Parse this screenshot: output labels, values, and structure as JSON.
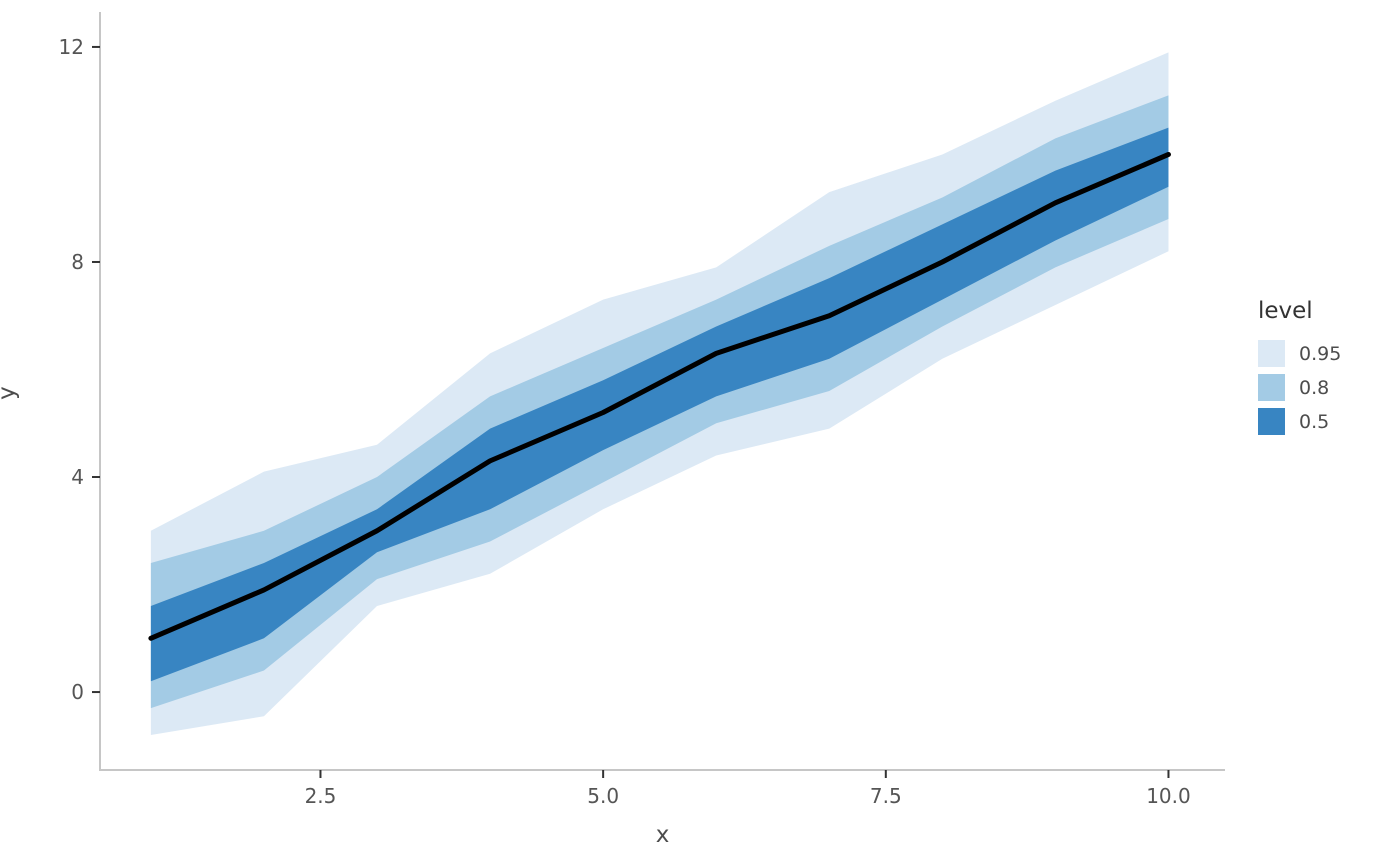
{
  "chart_data": {
    "type": "area",
    "title": "",
    "xlabel": "x",
    "ylabel": "y",
    "x": [
      1,
      2,
      3,
      4,
      5,
      6,
      7,
      8,
      9,
      10
    ],
    "median": [
      1.0,
      1.9,
      3.0,
      4.3,
      5.2,
      6.3,
      7.0,
      8.0,
      9.1,
      10.0
    ],
    "bands": [
      {
        "level": "0.95",
        "color": "#DCE9F5",
        "lower": [
          -0.8,
          -0.45,
          1.6,
          2.2,
          3.4,
          4.4,
          4.9,
          6.2,
          7.2,
          8.2
        ],
        "upper": [
          3.0,
          4.1,
          4.6,
          6.3,
          7.3,
          7.9,
          9.3,
          10.0,
          11.0,
          11.9
        ]
      },
      {
        "level": "0.8",
        "color": "#A3CBE5",
        "lower": [
          -0.3,
          0.4,
          2.1,
          2.8,
          3.9,
          5.0,
          5.6,
          6.8,
          7.9,
          8.8
        ],
        "upper": [
          2.4,
          3.0,
          4.0,
          5.5,
          6.4,
          7.3,
          8.3,
          9.2,
          10.3,
          11.1
        ]
      },
      {
        "level": "0.5",
        "color": "#3885C2",
        "lower": [
          0.2,
          1.0,
          2.6,
          3.4,
          4.5,
          5.5,
          6.2,
          7.3,
          8.4,
          9.4
        ],
        "upper": [
          1.6,
          2.4,
          3.4,
          4.9,
          5.8,
          6.8,
          7.7,
          8.7,
          9.7,
          10.5
        ]
      }
    ],
    "line_color": "#000000",
    "line_width": 5,
    "x_domain": [
      0.55,
      10.5
    ],
    "y_domain": [
      -1.45,
      12.65
    ],
    "x_ticks": [
      2.5,
      5.0,
      7.5,
      10.0
    ],
    "x_tick_labels": [
      "2.5",
      "5.0",
      "7.5",
      "10.0"
    ],
    "y_ticks": [
      0,
      4,
      8,
      12
    ],
    "y_tick_labels": [
      "0",
      "4",
      "8",
      "12"
    ],
    "axis_color": "#c6c6c6",
    "tick_color": "#333333",
    "tick_label_color": "#555555",
    "legend": {
      "title": "level",
      "entries": [
        {
          "label": "0.95",
          "color": "#DCE9F5"
        },
        {
          "label": "0.8",
          "color": "#A3CBE5"
        },
        {
          "label": "0.5",
          "color": "#3885C2"
        }
      ],
      "position": "right"
    }
  }
}
